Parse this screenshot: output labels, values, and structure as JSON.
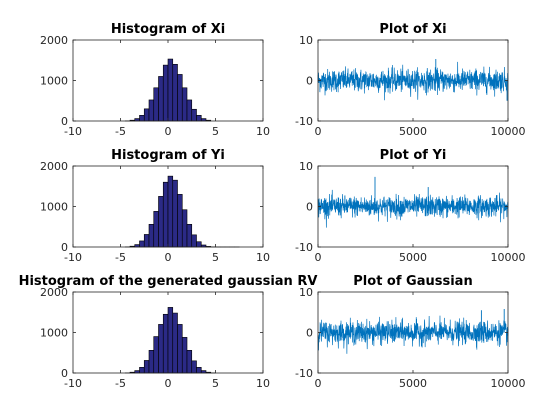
{
  "chart_data": [
    {
      "type": "bar",
      "title": "Histogram of Xi",
      "xlim": [
        -10,
        10
      ],
      "ylim": [
        0,
        2000
      ],
      "xticks": [
        "-10",
        "-5",
        "0",
        "5",
        "10"
      ],
      "yticks": [
        "0",
        "1000",
        "2000"
      ],
      "bin_edges": [
        -4.5,
        -4,
        -3.5,
        -3,
        -2.5,
        -2,
        -1.5,
        -1,
        -0.5,
        0,
        0.5,
        1,
        1.5,
        2,
        2.5,
        3,
        3.5,
        4,
        4.5
      ],
      "values": [
        5,
        20,
        60,
        140,
        300,
        520,
        820,
        1100,
        1380,
        1530,
        1400,
        1150,
        820,
        520,
        290,
        140,
        60,
        20
      ],
      "bar_color": "#2b2a86",
      "edge_color": "#000000"
    },
    {
      "type": "line",
      "title": "Plot of Xi",
      "xlim": [
        0,
        10000
      ],
      "ylim": [
        -10,
        10
      ],
      "xticks": [
        "0",
        "5000",
        "10000"
      ],
      "yticks": [
        "-10",
        "0",
        "10"
      ],
      "n_points": 10000,
      "mean": 0,
      "std": 1.4,
      "spikes": [
        {
          "x": 6200,
          "y": 5.3
        },
        {
          "x": 9950,
          "y": -5.0
        }
      ],
      "line_color": "#0072bd"
    },
    {
      "type": "bar",
      "title": "Histogram of Yi",
      "xlim": [
        -10,
        10
      ],
      "ylim": [
        0,
        2000
      ],
      "xticks": [
        "-10",
        "-5",
        "0",
        "5",
        "10"
      ],
      "yticks": [
        "0",
        "1000",
        "2000"
      ],
      "bin_edges": [
        -4.5,
        -4,
        -3.5,
        -3,
        -2.5,
        -2,
        -1.5,
        -1,
        -0.5,
        0,
        0.5,
        1,
        1.5,
        2,
        2.5,
        3,
        3.5,
        4,
        4.5,
        5,
        5.5,
        6,
        6.5,
        7,
        7.5
      ],
      "values": [
        5,
        20,
        60,
        150,
        310,
        560,
        880,
        1250,
        1600,
        1750,
        1650,
        1300,
        920,
        560,
        300,
        130,
        50,
        15,
        5,
        2,
        1,
        1,
        1,
        1
      ],
      "bar_color": "#2b2a86",
      "edge_color": "#000000"
    },
    {
      "type": "line",
      "title": "Plot of Yi",
      "xlim": [
        0,
        10000
      ],
      "ylim": [
        -10,
        10
      ],
      "xticks": [
        "0",
        "5000",
        "10000"
      ],
      "yticks": [
        "-10",
        "0",
        "10"
      ],
      "n_points": 10000,
      "mean": 0,
      "std": 1.3,
      "spikes": [
        {
          "x": 3000,
          "y": 7.3
        },
        {
          "x": 5800,
          "y": 4.8
        }
      ],
      "line_color": "#0072bd"
    },
    {
      "type": "bar",
      "title": "Histogram of the generated gaussian RV",
      "xlim": [
        -10,
        10
      ],
      "ylim": [
        0,
        2000
      ],
      "xticks": [
        "-10",
        "-5",
        "0",
        "5",
        "10"
      ],
      "yticks": [
        "0",
        "1000",
        "2000"
      ],
      "bin_edges": [
        -4.5,
        -4,
        -3.5,
        -3,
        -2.5,
        -2,
        -1.5,
        -1,
        -0.5,
        0,
        0.5,
        1,
        1.5,
        2,
        2.5,
        3,
        3.5,
        4,
        4.5,
        5
      ],
      "values": [
        5,
        20,
        60,
        140,
        310,
        560,
        900,
        1200,
        1450,
        1620,
        1480,
        1200,
        880,
        560,
        300,
        140,
        60,
        20,
        5
      ],
      "bar_color": "#2b2a86",
      "edge_color": "#000000"
    },
    {
      "type": "line",
      "title": "Plot of Gaussian",
      "xlim": [
        0,
        10000
      ],
      "ylim": [
        -10,
        10
      ],
      "xticks": [
        "0",
        "5000",
        "10000"
      ],
      "yticks": [
        "-10",
        "0",
        "10"
      ],
      "n_points": 10000,
      "mean": 0,
      "std": 1.4,
      "spikes": [
        {
          "x": 8600,
          "y": 5.5
        },
        {
          "x": 9800,
          "y": 5.8
        }
      ],
      "line_color": "#0072bd"
    }
  ]
}
